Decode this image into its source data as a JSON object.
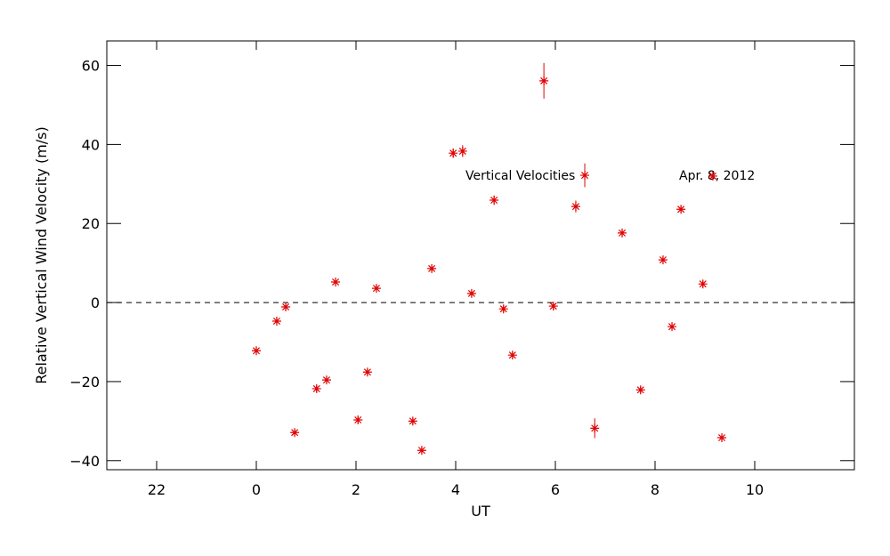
{
  "chart_data": {
    "type": "scatter",
    "x_label": "UT",
    "y_label": "Relative Vertical Wind Velocity (m/s)",
    "annotations": [
      "Vertical Velocities",
      "Apr. 8, 2012"
    ],
    "color": "#e00000",
    "marker": "asterisk",
    "reference_line": 0,
    "xlim": [
      -3,
      12
    ],
    "ylim": [
      -42.3,
      66.2
    ],
    "xticks": [
      {
        "value": -2,
        "label": "22"
      },
      0,
      2,
      4,
      6,
      8,
      10
    ],
    "yticks": [
      {
        "value": -40,
        "label": "−40"
      },
      {
        "value": -20,
        "label": "−20"
      },
      0,
      20,
      40,
      60
    ],
    "x": [
      0,
      0.41,
      0.59,
      0.77,
      1.21,
      1.41,
      1.59,
      2.04,
      2.23,
      2.41,
      3.14,
      3.32,
      3.52,
      3.95,
      4.14,
      4.32,
      4.77,
      4.96,
      5.14,
      5.77,
      5.96,
      6.41,
      6.59,
      6.79,
      7.34,
      7.71,
      8.16,
      8.34,
      8.52,
      8.96,
      9.16,
      9.34
    ],
    "values": [
      -12.2,
      -4.7,
      -1.1,
      -32.9,
      -21.8,
      -19.6,
      5.2,
      -29.7,
      -17.6,
      3.6,
      -30.0,
      -37.4,
      8.6,
      37.8,
      38.3,
      2.3,
      25.9,
      -1.6,
      -13.3,
      56.1,
      -0.9,
      24.3,
      32.2,
      -31.8,
      17.6,
      -22.1,
      10.8,
      -6.1,
      23.6,
      4.7,
      32.0,
      -34.2
    ],
    "errors": [
      0.8,
      0.8,
      0.8,
      0.8,
      0.8,
      0.8,
      0.8,
      0.8,
      0.8,
      0.8,
      0.8,
      0.8,
      0.8,
      1.2,
      1.5,
      0.8,
      1.2,
      0.8,
      0.8,
      4.5,
      0.8,
      1.5,
      3.0,
      2.5,
      0.8,
      0.8,
      0.8,
      0.8,
      0.8,
      0.8,
      0.8,
      0.8
    ]
  }
}
